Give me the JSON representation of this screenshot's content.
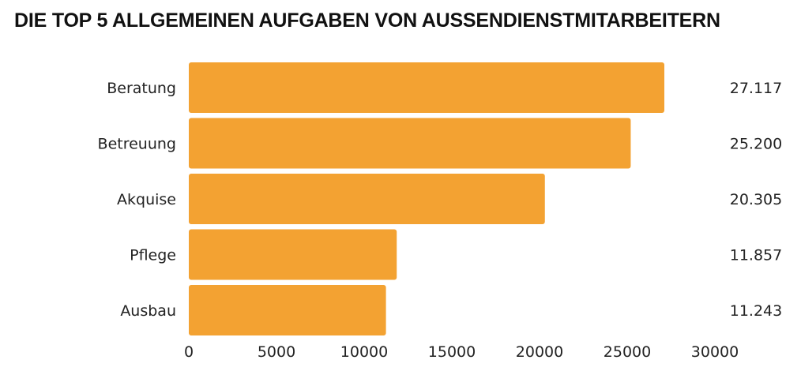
{
  "chart_data": {
    "type": "bar",
    "orientation": "horizontal",
    "title": "DIE TOP 5 ALLGEMEINEN AUFGABEN VON AUSSENDIENSTMITARBEITERN",
    "categories": [
      "Beratung",
      "Betreuung",
      "Akquise",
      "Pflege",
      "Ausbau"
    ],
    "values": [
      27117,
      25200,
      20305,
      11857,
      11243
    ],
    "data_labels": [
      "27.117",
      "25.200",
      "20.305",
      "11.857",
      "11.243"
    ],
    "xlim": [
      0,
      30000
    ],
    "x_ticks": [
      "0",
      "5000",
      "10000",
      "15000",
      "20000",
      "25000",
      "30000"
    ],
    "xlabel": "",
    "ylabel": "",
    "grid": false,
    "bar_color": "#F3A232"
  }
}
